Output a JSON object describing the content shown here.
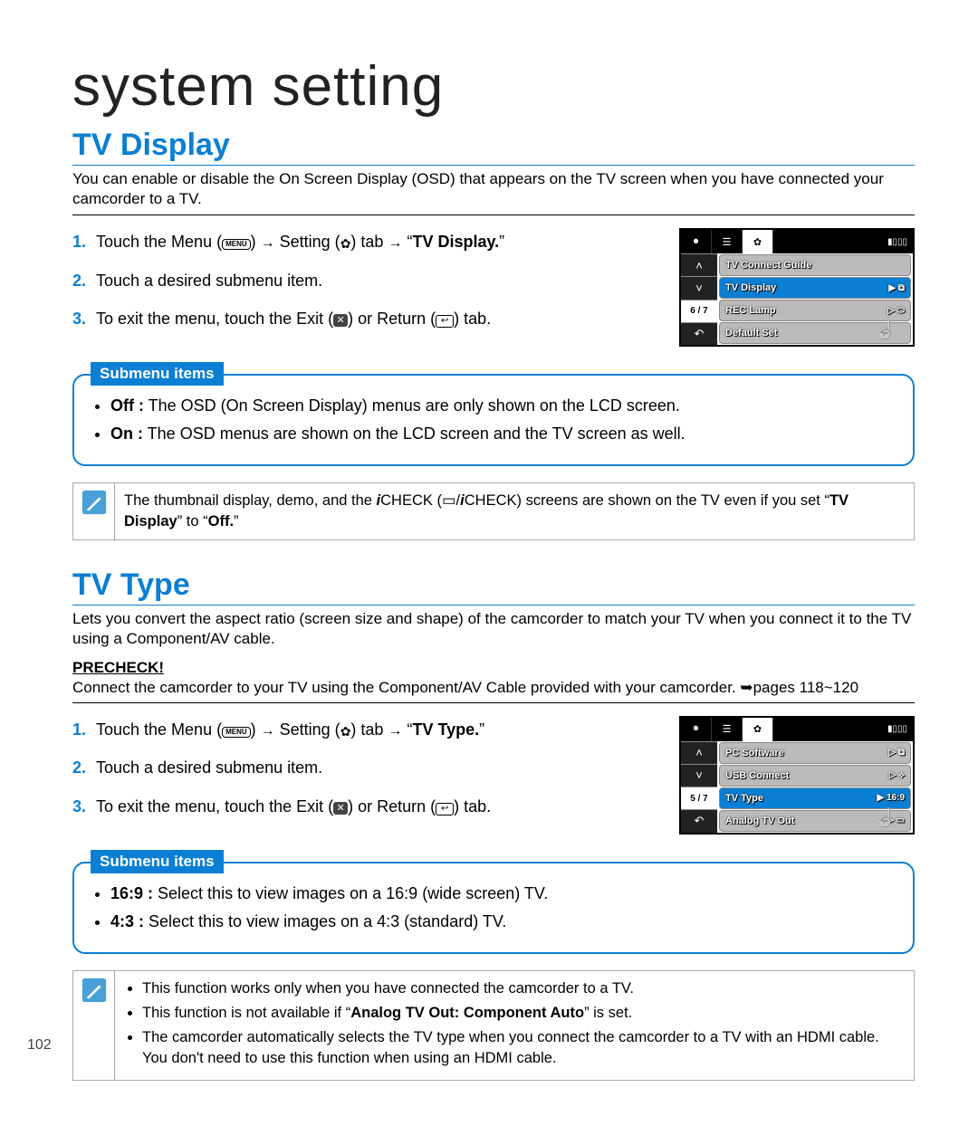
{
  "page": {
    "title": "system setting",
    "number": "102"
  },
  "colors": {
    "accent": "#0a7fd4"
  },
  "tvDisplay": {
    "heading": "TV Display",
    "intro": "You can enable or disable the On Screen Display (OSD) that appears on the TV screen when you have connected your camcorder to a TV.",
    "steps": {
      "s1_a": "Touch the Menu (",
      "s1_menu": "MENU",
      "s1_b": ") ",
      "arrow": "→",
      "s1_c": " Setting (",
      "s1_gear": "✿",
      "s1_d": ") tab ",
      "s1_target": "TV Display.",
      "s2": "Touch a desired submenu item.",
      "s3_a": "To exit the menu, touch the Exit (",
      "s3_x": "✕",
      "s3_b": ") or Return (",
      "s3_ret": "↩",
      "s3_c": ") tab."
    },
    "osd": {
      "page": "6 / 7",
      "items": [
        "TV Connect Guide",
        "TV Display",
        "REC Lamp",
        "Default Set"
      ],
      "selectedIndex": 1,
      "rightGlyph": [
        "",
        "▶ ⧉",
        "▷ ⬭",
        ""
      ]
    },
    "submenuLabel": "Submenu items",
    "submenu": {
      "off_label": "Off :",
      "off_text": " The OSD (On Screen Display) menus are only shown on the LCD screen.",
      "on_label": "On :",
      "on_text": " The OSD menus are shown on the LCD screen and the TV screen as well."
    },
    "note_a": "The thumbnail display, demo, and the ",
    "note_icheck_i": "i",
    "note_icheck": "CHECK",
    "note_b": " (▭/",
    "note_c": ") screens are shown on the TV even if you set “",
    "note_bold1": "TV Display",
    "note_d": "” to “",
    "note_bold2": "Off.",
    "note_e": "”"
  },
  "tvType": {
    "heading": "TV Type",
    "intro": "Lets you convert the aspect ratio (screen size and shape) of the camcorder to match your TV when you connect it to the TV using a Component/AV cable.",
    "precheck_label": "PRECHECK!",
    "precheck_text": "Connect the camcorder to your TV using the Component/AV Cable provided with your camcorder. ➥pages 118~120",
    "steps": {
      "s1_target": "TV Type.",
      "s2": "Touch a desired submenu item.",
      "s3_a": "To exit the menu, touch the Exit (",
      "s3_b": ") or Return (",
      "s3_c": ") tab."
    },
    "osd": {
      "page": "5 / 7",
      "items": [
        "PC Software",
        "USB Connect",
        "TV Type",
        "Analog TV Out"
      ],
      "selectedIndex": 2,
      "rightGlyph": [
        "▷ ⧉",
        "▷ ⟡",
        "▶ 16:9",
        "▷ ▭"
      ]
    },
    "submenuLabel": "Submenu items",
    "submenu": {
      "r169_label": "16:9 :",
      "r169_text": " Select this to view images on a 16:9 (wide screen) TV.",
      "r43_label": "4:3 :",
      "r43_text": " Select this to view images on a 4:3 (standard) TV."
    },
    "notes": {
      "n1": "This function works only when you have connected the camcorder to a TV.",
      "n2_a": "This function is not available if “",
      "n2_bold": "Analog TV Out: Component Auto",
      "n2_b": "” is set.",
      "n3": "The camcorder automatically selects the TV type when you connect the camcorder to a TV with an HDMI cable. You don't need to use this function when using an HDMI cable."
    }
  }
}
